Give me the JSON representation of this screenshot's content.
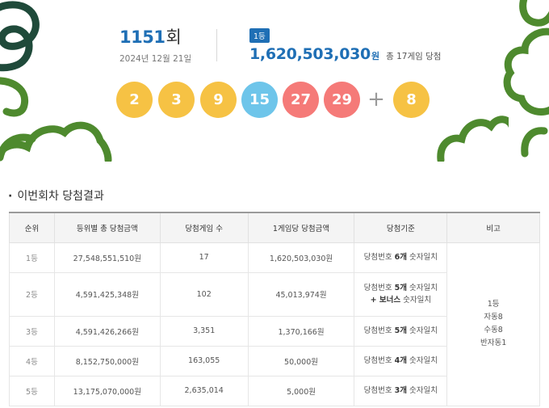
{
  "draw": {
    "round": "1151",
    "round_suffix": "회",
    "date": "2024년 12월 21일",
    "rank_badge": "1등",
    "first_prize_amount": "1,620,503,030",
    "first_prize_unit": "원",
    "first_prize_games": "총 17게임 당첨",
    "balls": [
      {
        "value": "2",
        "color": "#f6c244"
      },
      {
        "value": "3",
        "color": "#f6c244"
      },
      {
        "value": "9",
        "color": "#f6c244"
      },
      {
        "value": "15",
        "color": "#6ec5ea"
      },
      {
        "value": "27",
        "color": "#f57a78"
      },
      {
        "value": "29",
        "color": "#f57a78"
      }
    ],
    "plus": "+",
    "bonus": {
      "value": "8",
      "color": "#f6c244"
    }
  },
  "section_title": "이번회차 당첨결과",
  "table": {
    "headers": [
      "순위",
      "등위별 총 당첨금액",
      "당첨게임 수",
      "1게임당 당첨금액",
      "당첨기준",
      "비고"
    ],
    "rows": [
      {
        "rank": "1등",
        "total": "27,548,551,510원",
        "games": "17",
        "per_game": "1,620,503,030원",
        "crit_pre": "당첨번호 ",
        "crit_bold": "6개",
        "crit_post": " 숫자일치",
        "crit_line2": ""
      },
      {
        "rank": "2등",
        "total": "4,591,425,348원",
        "games": "102",
        "per_game": "45,013,974원",
        "crit_pre": "당첨번호 ",
        "crit_bold": "5개",
        "crit_post": " 숫자일치",
        "crit_line2_bold": "+ 보너스",
        "crit_line2": " 숫자일치"
      },
      {
        "rank": "3등",
        "total": "4,591,426,266원",
        "games": "3,351",
        "per_game": "1,370,166원",
        "crit_pre": "당첨번호 ",
        "crit_bold": "5개",
        "crit_post": " 숫자일치",
        "crit_line2": ""
      },
      {
        "rank": "4등",
        "total": "8,152,750,000원",
        "games": "163,055",
        "per_game": "50,000원",
        "crit_pre": "당첨번호 ",
        "crit_bold": "4개",
        "crit_post": " 숫자일치",
        "crit_line2": ""
      },
      {
        "rank": "5등",
        "total": "13,175,070,000원",
        "games": "2,635,014",
        "per_game": "5,000원",
        "crit_pre": "당첨번호 ",
        "crit_bold": "3개",
        "crit_post": " 숫자일치",
        "crit_line2": ""
      }
    ],
    "remark_lines": [
      "1등",
      "자동8",
      "수동8",
      "반자동1"
    ]
  },
  "colors": {
    "accent": "#1f6fb5",
    "deco_green": "#4e8a2e",
    "deco_dark": "#1f4a3a"
  }
}
